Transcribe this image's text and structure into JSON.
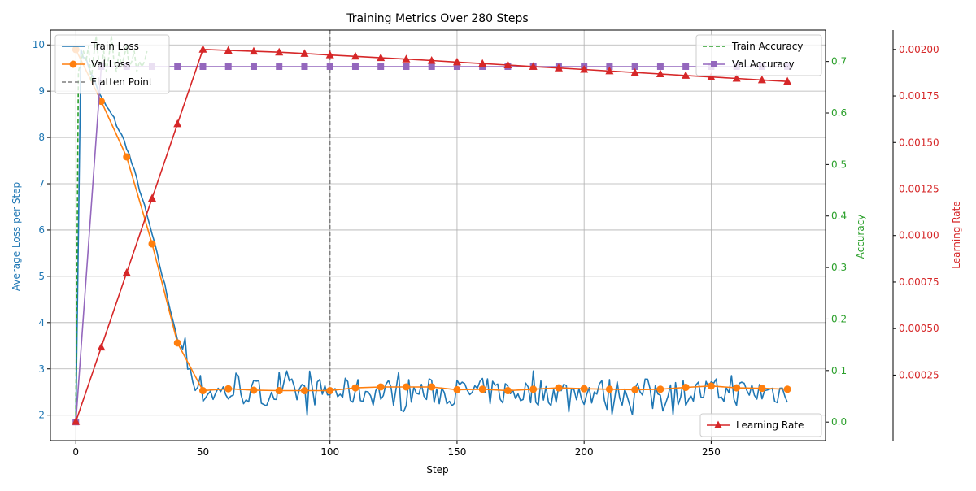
{
  "chart_data": {
    "type": "line",
    "title": "Training Metrics Over 280 Steps",
    "xlabel": "Step",
    "xlim": [
      -10,
      295
    ],
    "x_ticks": [
      0,
      50,
      100,
      150,
      200,
      250
    ],
    "axes": {
      "loss": {
        "label": "Average Loss per Step",
        "ylim": [
          1.45,
          10.32
        ],
        "ticks": [
          2,
          3,
          4,
          5,
          6,
          7,
          8,
          9,
          10
        ],
        "color": "#1f77b4"
      },
      "accuracy": {
        "label": "Accuracy",
        "ylim": [
          -0.036,
          0.761
        ],
        "ticks": [
          0.0,
          0.1,
          0.2,
          0.3,
          0.4,
          0.5,
          0.6,
          0.7
        ],
        "color": "#2ca02c"
      },
      "lr": {
        "label": "Learning Rate",
        "ylim": [
          -0.000102,
          0.002104
        ],
        "ticks": [
          0.00025,
          0.0005,
          0.00075,
          0.001,
          0.00125,
          0.0015,
          0.00175,
          0.002
        ],
        "color": "#d62728"
      }
    },
    "grid": true,
    "flatten_point": 100,
    "legends": {
      "loss": "upper-left",
      "accuracy": "upper-right",
      "lr": "lower-right"
    },
    "series": [
      {
        "name": "Train Loss",
        "axis": "loss",
        "color": "#1f77b4",
        "style": "solid",
        "marker": "none",
        "key_points": [
          [
            0,
            1.85
          ],
          [
            2,
            9.9
          ],
          [
            5,
            9.55
          ],
          [
            10,
            8.85
          ],
          [
            15,
            8.4
          ],
          [
            20,
            7.8
          ],
          [
            25,
            6.9
          ],
          [
            30,
            5.9
          ],
          [
            35,
            4.8
          ],
          [
            40,
            3.65
          ],
          [
            45,
            3.0
          ],
          [
            50,
            2.5
          ],
          [
            100,
            2.5
          ],
          [
            280,
            2.5
          ]
        ],
        "noise_amplitude_after_step_42": 0.3
      },
      {
        "name": "Val Loss",
        "axis": "loss",
        "color": "#ff7f0e",
        "style": "solid",
        "marker": "circle",
        "x": [
          0,
          10,
          20,
          30,
          40,
          50,
          60,
          70,
          80,
          90,
          100,
          110,
          120,
          130,
          140,
          150,
          160,
          170,
          180,
          190,
          200,
          210,
          220,
          230,
          240,
          250,
          260,
          270,
          280
        ],
        "y": [
          9.9,
          8.78,
          7.58,
          5.7,
          3.56,
          2.53,
          2.57,
          2.54,
          2.53,
          2.53,
          2.53,
          2.59,
          2.61,
          2.61,
          2.61,
          2.55,
          2.56,
          2.53,
          2.56,
          2.59,
          2.57,
          2.56,
          2.55,
          2.56,
          2.6,
          2.63,
          2.59,
          2.58,
          2.56
        ]
      },
      {
        "name": "Train Accuracy",
        "axis": "accuracy",
        "color": "#2ca02c",
        "style": "dashed",
        "marker": "none",
        "x": [
          0,
          1,
          2,
          3,
          4,
          5,
          6,
          7,
          8,
          9,
          10,
          11,
          12,
          13,
          14,
          15,
          16,
          17,
          18,
          19,
          20,
          21,
          22,
          23,
          24,
          25,
          26,
          27,
          28
        ],
        "y": [
          0.0,
          0.68,
          0.7,
          0.72,
          0.7,
          0.73,
          0.66,
          0.71,
          0.75,
          0.7,
          0.69,
          0.72,
          0.68,
          0.71,
          0.75,
          0.7,
          0.68,
          0.72,
          0.69,
          0.71,
          0.73,
          0.69,
          0.7,
          0.72,
          0.68,
          0.7,
          0.69,
          0.7,
          0.72
        ]
      },
      {
        "name": "Val Accuracy",
        "axis": "accuracy",
        "color": "#9467bd",
        "style": "solid",
        "marker": "square",
        "x": [
          0,
          10,
          20,
          30,
          40,
          50,
          60,
          70,
          80,
          90,
          100,
          110,
          120,
          130,
          140,
          150,
          160,
          170,
          180,
          190,
          200,
          210,
          220,
          230,
          240,
          250,
          260,
          270,
          280
        ],
        "y": [
          0.0,
          0.69,
          0.69,
          0.69,
          0.69,
          0.69,
          0.69,
          0.69,
          0.69,
          0.69,
          0.69,
          0.69,
          0.69,
          0.69,
          0.69,
          0.69,
          0.69,
          0.69,
          0.69,
          0.69,
          0.69,
          0.69,
          0.69,
          0.69,
          0.69,
          0.69,
          0.69,
          0.69,
          0.69
        ]
      },
      {
        "name": "Learning Rate",
        "axis": "lr",
        "color": "#d62728",
        "style": "solid",
        "marker": "triangle",
        "x": [
          0,
          10,
          20,
          30,
          40,
          50,
          60,
          70,
          80,
          90,
          100,
          110,
          120,
          130,
          140,
          150,
          160,
          170,
          180,
          190,
          200,
          210,
          220,
          230,
          240,
          250,
          260,
          270,
          280
        ],
        "y": [
          0.0,
          0.0004,
          0.0008,
          0.0012,
          0.0016,
          0.002,
          0.001995,
          0.00199,
          0.001985,
          0.001978,
          0.00197,
          0.001963,
          0.001955,
          0.001948,
          0.00194,
          0.001932,
          0.001924,
          0.001916,
          0.001908,
          0.0019,
          0.001892,
          0.001884,
          0.001876,
          0.001868,
          0.00186,
          0.001852,
          0.001844,
          0.001836,
          0.001828
        ]
      }
    ],
    "flatten_series": {
      "name": "Flatten Point",
      "color": "#7f7f7f",
      "style": "dashed"
    }
  }
}
